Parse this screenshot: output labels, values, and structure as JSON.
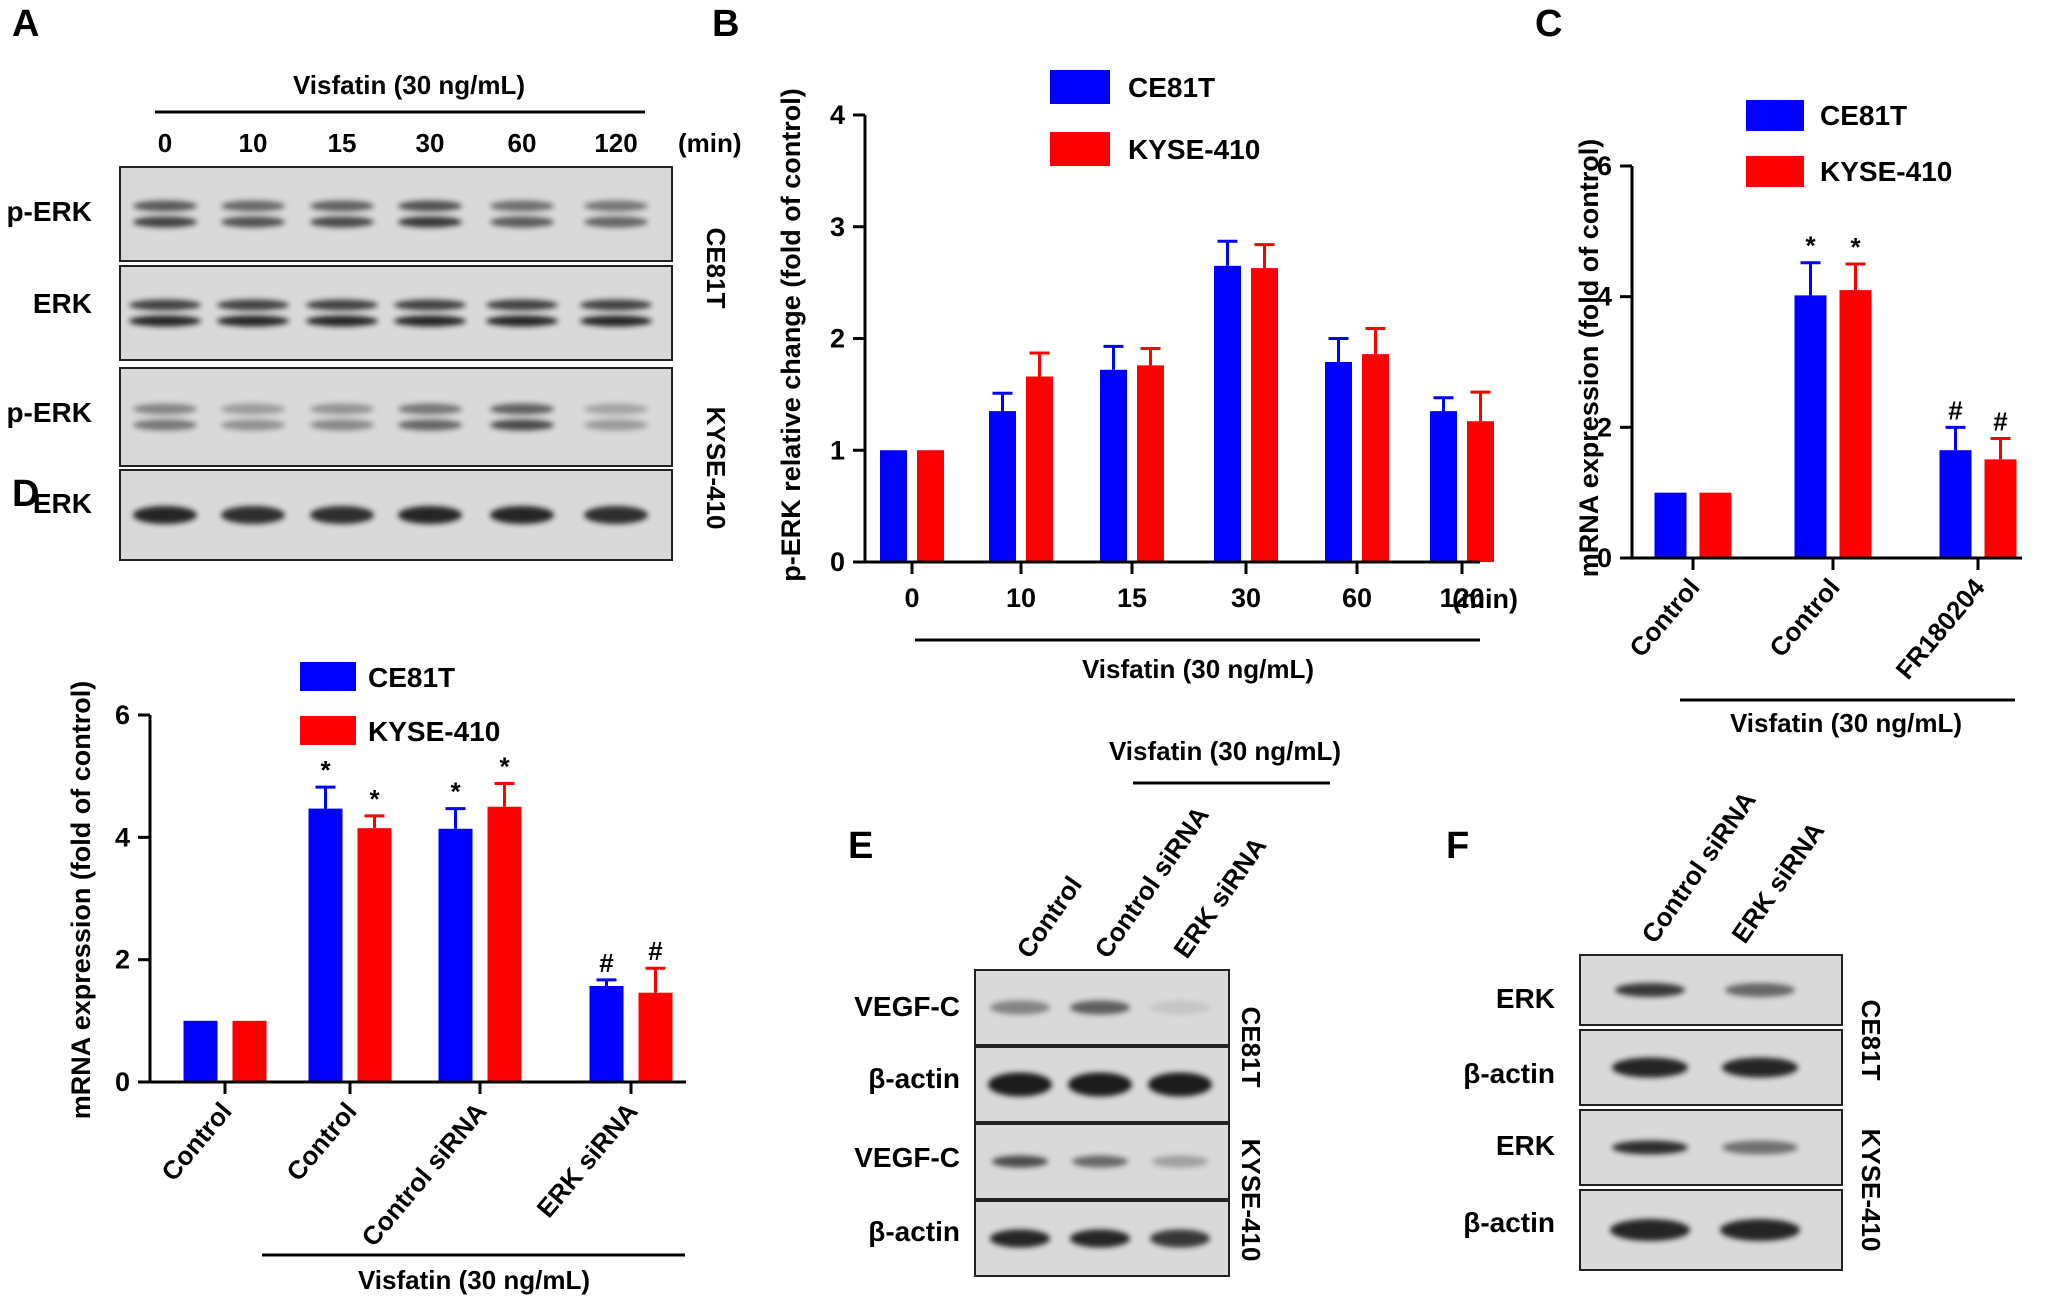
{
  "colors": {
    "ce81t": "#0000FF",
    "kyse410": "#FF0000",
    "band": "#1a1a1a",
    "membrane": "#d9d9d9"
  },
  "panel_letters": {
    "a": "A",
    "b": "B",
    "c": "C",
    "d": "D",
    "e": "E",
    "f": "F"
  },
  "panel_a": {
    "treatment": "Visfatin (30 ng/mL)",
    "time_labels": [
      "0",
      "10",
      "15",
      "30",
      "60",
      "120"
    ],
    "time_unit": "(min)",
    "row_labels": [
      "p-ERK",
      "ERK",
      "p-ERK",
      "ERK"
    ],
    "cell_lines": [
      "CE81T",
      "KYSE-410"
    ],
    "band_intensity": {
      "ce81t_perk": [
        0.85,
        0.75,
        0.8,
        0.9,
        0.7,
        0.65
      ],
      "ce81t_erk": [
        1,
        1,
        1,
        1,
        1,
        1
      ],
      "kyse_perk": [
        0.55,
        0.4,
        0.45,
        0.65,
        0.8,
        0.35
      ],
      "kyse_erk": [
        0.95,
        0.9,
        0.9,
        0.95,
        0.95,
        0.9
      ]
    }
  },
  "panel_e": {
    "treatment": "Visfatin (30 ng/mL)",
    "columns": [
      "Control",
      "Control siRNA",
      "ERK siRNA"
    ],
    "row_labels": [
      "VEGF-C",
      "β-actin",
      "VEGF-C",
      "β-actin"
    ],
    "cell_lines": [
      "CE81T",
      "KYSE-410"
    ],
    "band_intensity": {
      "ce81t_vegfc": [
        0.45,
        0.65,
        0.1
      ],
      "ce81t_actin": [
        1,
        1,
        1
      ],
      "kyse_vegfc": [
        0.75,
        0.6,
        0.3
      ],
      "kyse_actin": [
        0.95,
        0.95,
        0.85
      ]
    }
  },
  "panel_f": {
    "columns": [
      "Control siRNA",
      "ERK siRNA"
    ],
    "row_labels": [
      "ERK",
      "β-actin",
      "ERK",
      "β-actin"
    ],
    "cell_lines": [
      "CE81T",
      "KYSE-410"
    ],
    "band_intensity": {
      "ce81t_erk": [
        0.85,
        0.6
      ],
      "ce81t_actin": [
        0.95,
        0.95
      ],
      "kyse_erk": [
        0.9,
        0.55
      ],
      "kyse_actin": [
        0.95,
        0.95
      ]
    }
  },
  "chart_data": [
    {
      "panel": "B",
      "type": "bar",
      "categories": [
        "0",
        "10",
        "15",
        "30",
        "60",
        "120"
      ],
      "x_unit": "(min)",
      "treatment": "Visfatin (30 ng/mL)",
      "xlabel": "",
      "ylabel": "p-ERK relative change (fold of control)",
      "ylim": [
        0,
        4
      ],
      "yticks": [
        "0",
        "1",
        "2",
        "3",
        "4"
      ],
      "grid": false,
      "legend": "top",
      "series": [
        {
          "name": "CE81T",
          "values": [
            1.0,
            1.35,
            1.72,
            2.65,
            1.79,
            1.35
          ],
          "errors": [
            0,
            0.16,
            0.21,
            0.22,
            0.21,
            0.12
          ]
        },
        {
          "name": "KYSE-410",
          "values": [
            1.0,
            1.66,
            1.76,
            2.63,
            1.86,
            1.26
          ],
          "errors": [
            0,
            0.21,
            0.15,
            0.21,
            0.23,
            0.26
          ]
        }
      ]
    },
    {
      "panel": "C",
      "type": "bar",
      "categories": [
        "Control",
        "Control",
        "FR180204"
      ],
      "treatment": "Visfatin (30 ng/mL)",
      "treated_from": 1,
      "xlabel": "",
      "ylabel": "mRNA expression (fold of control)",
      "ylim": [
        0,
        6
      ],
      "yticks": [
        "0",
        "2",
        "4",
        "6"
      ],
      "grid": false,
      "legend": "top",
      "series": [
        {
          "name": "CE81T",
          "values": [
            1.0,
            4.02,
            1.65
          ],
          "errors": [
            0,
            0.5,
            0.35
          ],
          "marks": [
            "",
            "*",
            "#"
          ]
        },
        {
          "name": "KYSE-410",
          "values": [
            1.0,
            4.1,
            1.51
          ],
          "errors": [
            0,
            0.4,
            0.32
          ],
          "marks": [
            "",
            "*",
            "#"
          ]
        }
      ]
    },
    {
      "panel": "D",
      "type": "bar",
      "categories": [
        "Control",
        "Control",
        "Control siRNA",
        "ERK siRNA"
      ],
      "treatment": "Visfatin (30 ng/mL)",
      "treated_from": 1,
      "xlabel": "",
      "ylabel": "mRNA expression (fold of control)",
      "ylim": [
        0,
        6
      ],
      "yticks": [
        "0",
        "2",
        "4",
        "6"
      ],
      "grid": false,
      "legend": "top",
      "series": [
        {
          "name": "CE81T",
          "values": [
            1.0,
            4.47,
            4.14,
            1.57
          ],
          "errors": [
            0,
            0.35,
            0.33,
            0.1
          ],
          "marks": [
            "",
            "*",
            "*",
            "#"
          ]
        },
        {
          "name": "KYSE-410",
          "values": [
            1.0,
            4.15,
            4.5,
            1.46
          ],
          "errors": [
            0,
            0.2,
            0.38,
            0.4
          ],
          "marks": [
            "",
            "*",
            "*",
            "#"
          ]
        }
      ]
    }
  ]
}
